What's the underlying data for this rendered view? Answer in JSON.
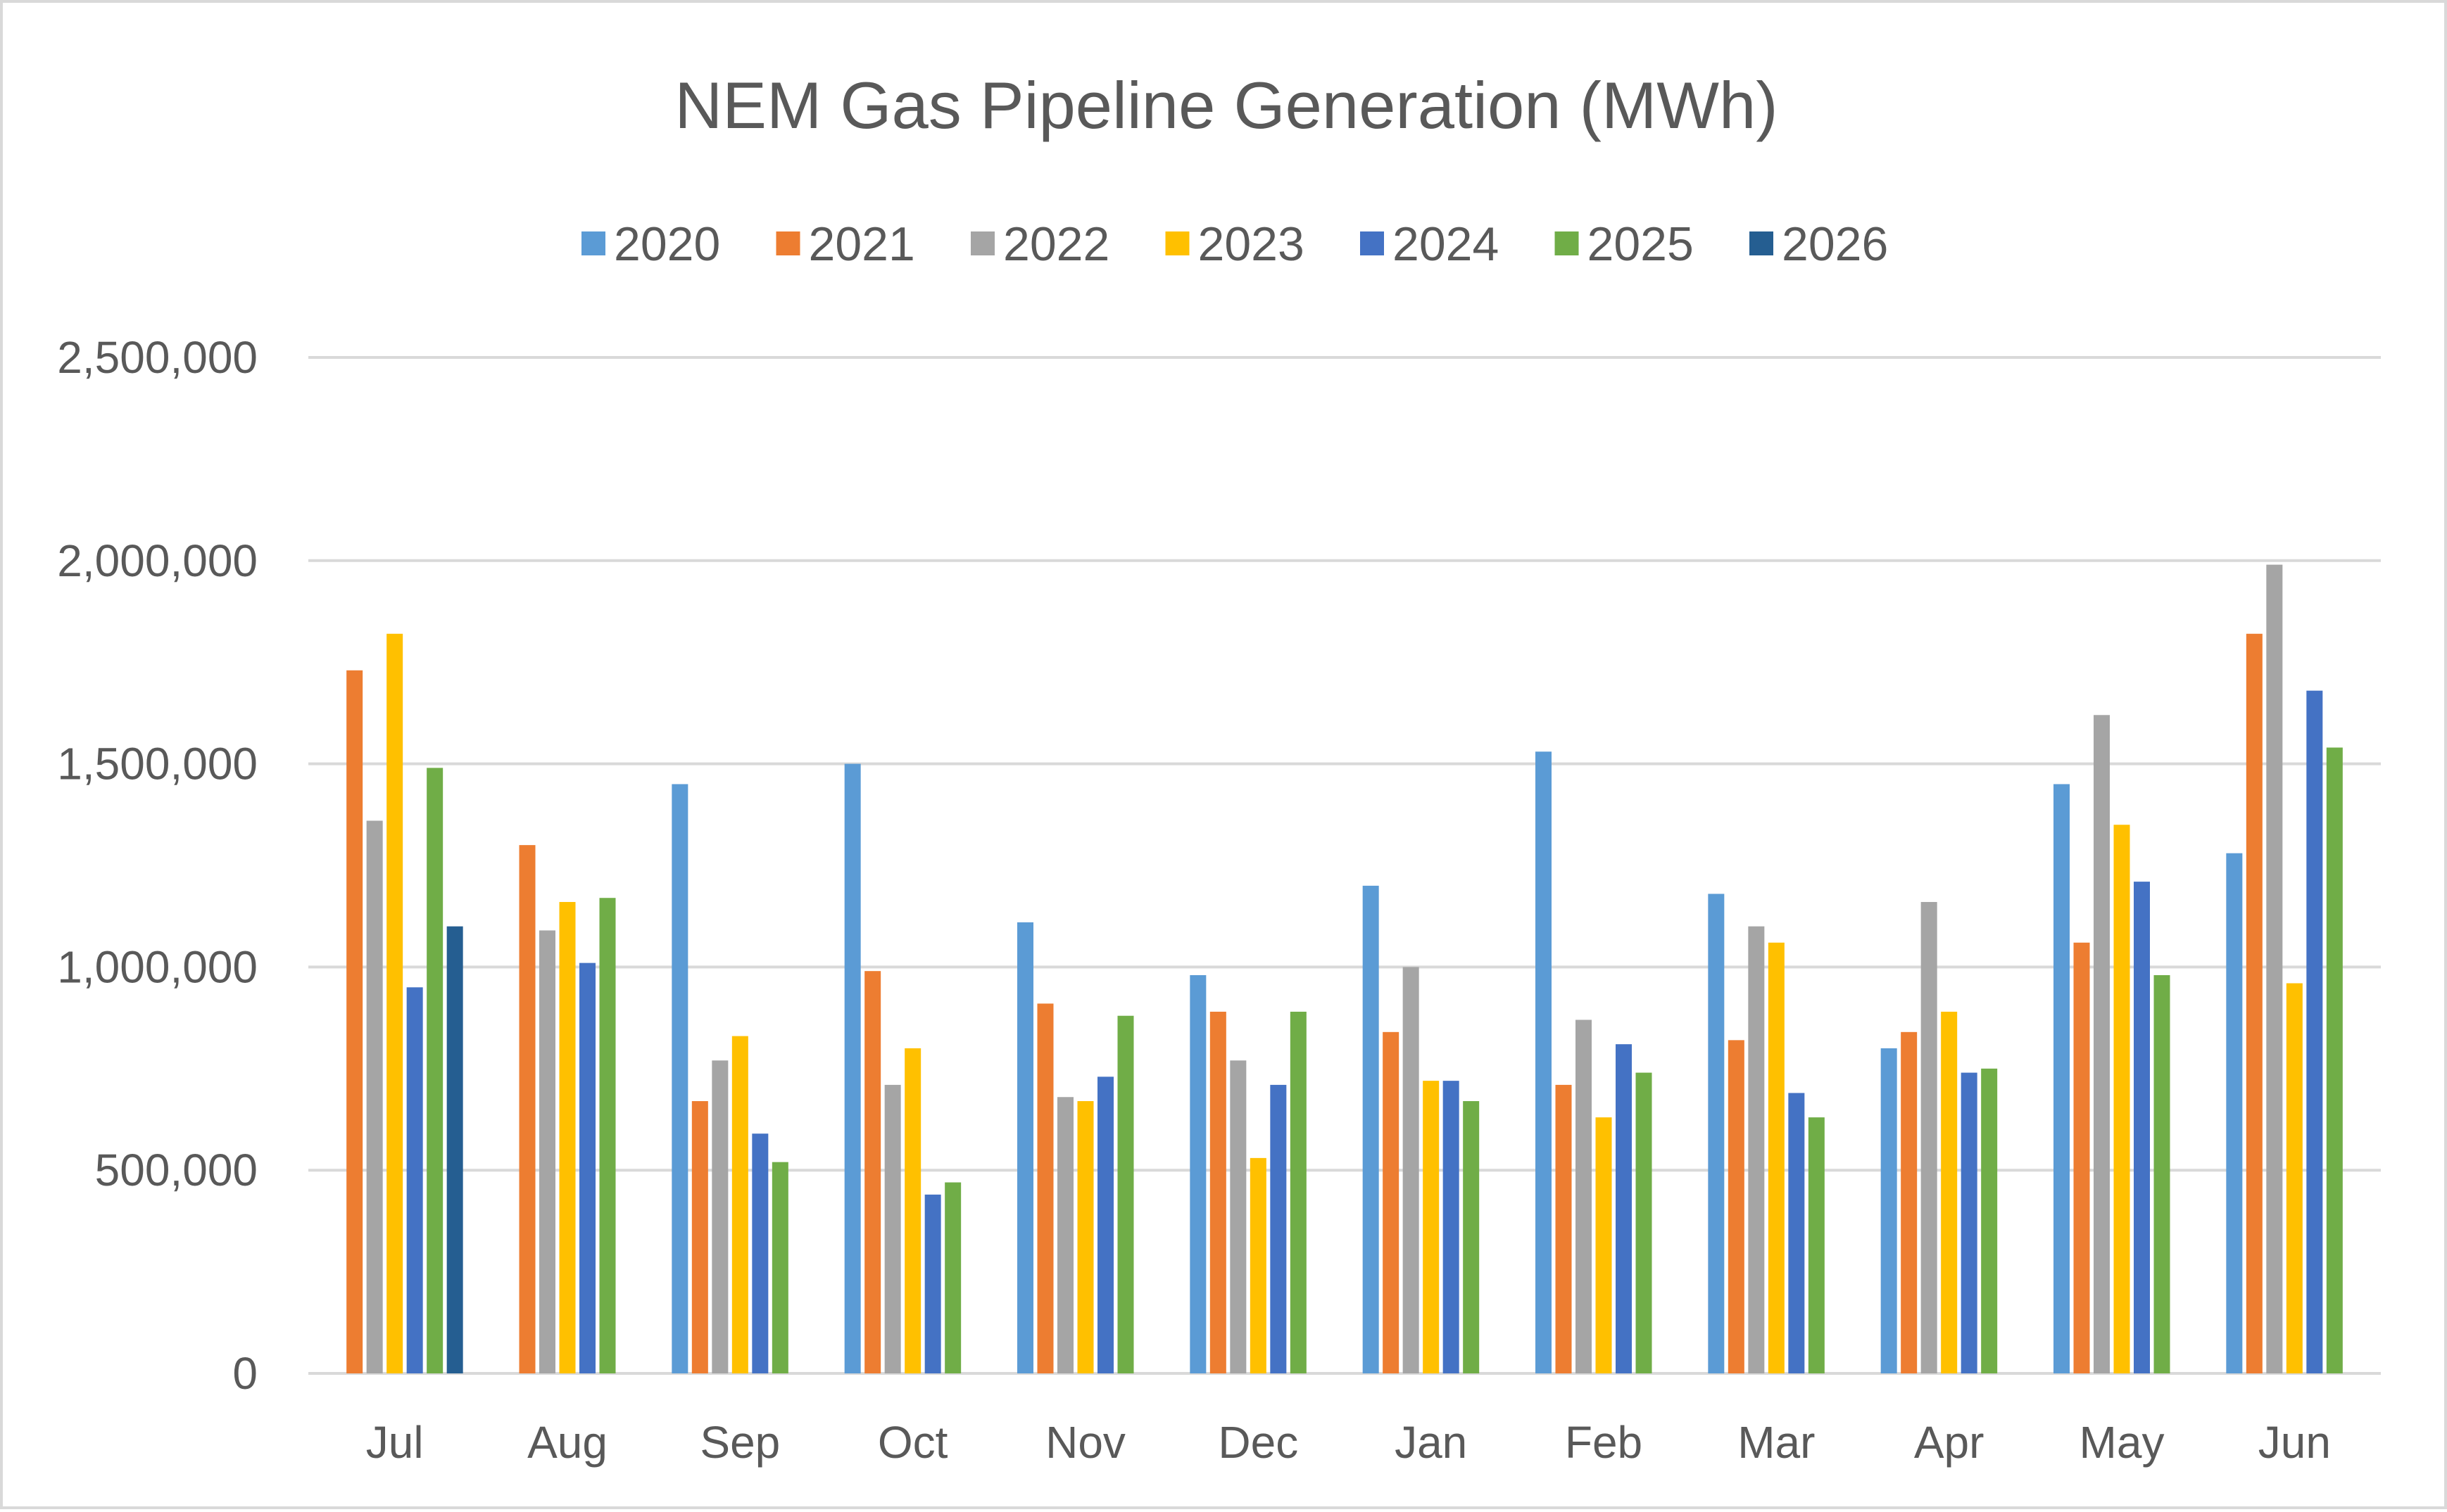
{
  "chart_data": {
    "type": "bar",
    "title": "NEM Gas Pipeline Generation (MWh)",
    "xlabel": "",
    "ylabel": "",
    "ylim": [
      0,
      2500000
    ],
    "yticks": [
      0,
      500000,
      1000000,
      1500000,
      2000000,
      2500000
    ],
    "ytick_labels": [
      "0",
      "500,000",
      "1,000,000",
      "1,500,000",
      "2,000,000",
      "2,500,000"
    ],
    "grid": true,
    "legend_position": "top",
    "categories": [
      "Jul",
      "Aug",
      "Sep",
      "Oct",
      "Nov",
      "Dec",
      "Jan",
      "Feb",
      "Mar",
      "Apr",
      "May",
      "Jun"
    ],
    "series": [
      {
        "name": "2020",
        "color": "#5B9BD5",
        "values": [
          null,
          null,
          1450000,
          1500000,
          1110000,
          980000,
          1200000,
          1530000,
          1180000,
          800000,
          1450000,
          1280000
        ]
      },
      {
        "name": "2021",
        "color": "#ED7D31",
        "values": [
          1730000,
          1300000,
          670000,
          990000,
          910000,
          890000,
          840000,
          710000,
          820000,
          840000,
          1060000,
          1820000
        ]
      },
      {
        "name": "2022",
        "color": "#A5A5A5",
        "values": [
          1360000,
          1090000,
          770000,
          710000,
          680000,
          770000,
          1000000,
          870000,
          1100000,
          1160000,
          1620000,
          1990000
        ]
      },
      {
        "name": "2023",
        "color": "#FFC000",
        "values": [
          1820000,
          1160000,
          830000,
          800000,
          670000,
          530000,
          720000,
          630000,
          1060000,
          890000,
          1350000,
          960000
        ]
      },
      {
        "name": "2024",
        "color": "#4472C4",
        "values": [
          950000,
          1010000,
          590000,
          440000,
          730000,
          710000,
          720000,
          810000,
          690000,
          740000,
          1210000,
          1680000
        ]
      },
      {
        "name": "2025",
        "color": "#70AD47",
        "values": [
          1490000,
          1170000,
          520000,
          470000,
          880000,
          890000,
          670000,
          740000,
          630000,
          750000,
          980000,
          1540000
        ]
      },
      {
        "name": "2026",
        "color": "#255E91",
        "values": [
          1100000,
          null,
          null,
          null,
          null,
          null,
          null,
          null,
          null,
          null,
          null,
          null
        ]
      }
    ]
  }
}
